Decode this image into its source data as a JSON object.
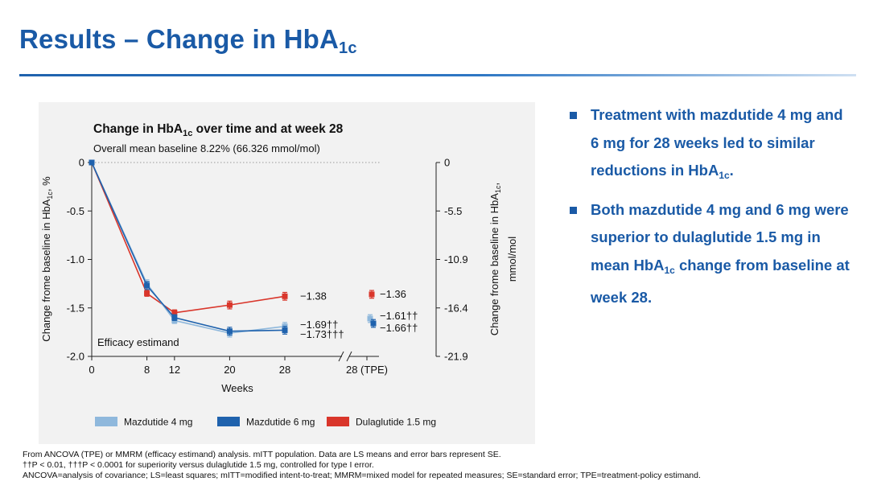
{
  "slide": {
    "title_main": "Results – Change in HbA",
    "title_sub": "1c"
  },
  "bullets": [
    {
      "pre": "Treatment with mazdutide 4 mg and 6 mg for 28 weeks led to similar reductions in HbA",
      "sub": "1c",
      "post": "."
    },
    {
      "pre": "Both mazdutide 4 mg and 6 mg were superior to dulaglutide 1.5 mg in mean HbA",
      "sub": "1c",
      "post": " change from baseline at week 28."
    }
  ],
  "footnotes": [
    "From ANCOVA (TPE) or MMRM (efficacy estimand) analysis. mITT population. Data are LS means and error bars represent SE.",
    "††P < 0.01, †††P < 0.0001 for superiority versus dulaglutide 1.5 mg, controlled for type I error.",
    "ANCOVA=analysis of covariance; LS=least squares; mITT=modified intent-to-treat; MMRM=mixed model for repeated measures; SE=standard error; TPE=treatment-policy estimand."
  ],
  "chart_data": {
    "type": "line",
    "title_pre": "Change in HbA",
    "title_sub": "1c",
    "title_post": " over time and at week 28",
    "subtitle": "Overall mean baseline 8.22% (66.326 mmol/mol)",
    "annotation": "Efficacy estimand",
    "xlabel": "Weeks",
    "ylabel_pre": "Change frome baseline in HbA",
    "ylabel_sub": "1c",
    "ylabel_post": ", %",
    "ylabel_right_line1_pre": "Change frome baseline in HbA",
    "ylabel_right_line1_sub": "1c",
    "ylabel_right_line1_post": ",",
    "ylabel_right_line2": "mmol/mol",
    "x_ticks": [
      "0",
      "8",
      "12",
      "20",
      "28",
      "28 (TPE)"
    ],
    "y_ticks": [
      "0",
      "-0.5",
      "-1.0",
      "-1.5",
      "-2.0"
    ],
    "ylim": [
      -2.0,
      0
    ],
    "y_right_ticks": [
      "0",
      "-5.5",
      "-10.9",
      "-16.4",
      "-21.9"
    ],
    "legend_position": "bottom",
    "colors": {
      "m4": "#8fb8dc",
      "m6": "#1f62ad",
      "dula": "#d9362b"
    },
    "series": [
      {
        "key": "m4",
        "name": "Mazdutide 4 mg",
        "x": [
          0,
          8,
          12,
          20,
          28
        ],
        "y": [
          0,
          -1.25,
          -1.63,
          -1.76,
          -1.69
        ],
        "se": [
          0,
          0.04,
          0.03,
          0.04,
          0.04
        ],
        "tpe": -1.61,
        "tpe_se": 0.04,
        "label_week28": "−1.69††",
        "label_tpe": "−1.61††"
      },
      {
        "key": "m6",
        "name": "Mazdutide 6 mg",
        "x": [
          0,
          8,
          12,
          20,
          28
        ],
        "y": [
          0,
          -1.27,
          -1.6,
          -1.74,
          -1.73
        ],
        "se": [
          0,
          0.04,
          0.03,
          0.04,
          0.04
        ],
        "tpe": -1.66,
        "tpe_se": 0.04,
        "label_week28": "−1.73†††",
        "label_tpe": "−1.66††"
      },
      {
        "key": "dula",
        "name": "Dulaglutide 1.5 mg",
        "x": [
          0,
          8,
          12,
          20,
          28
        ],
        "y": [
          0,
          -1.35,
          -1.55,
          -1.47,
          -1.38
        ],
        "se": [
          0,
          0.03,
          0.03,
          0.04,
          0.04
        ],
        "tpe": -1.36,
        "tpe_se": 0.04,
        "label_week28": "−1.38",
        "label_tpe": "−1.36"
      }
    ]
  }
}
